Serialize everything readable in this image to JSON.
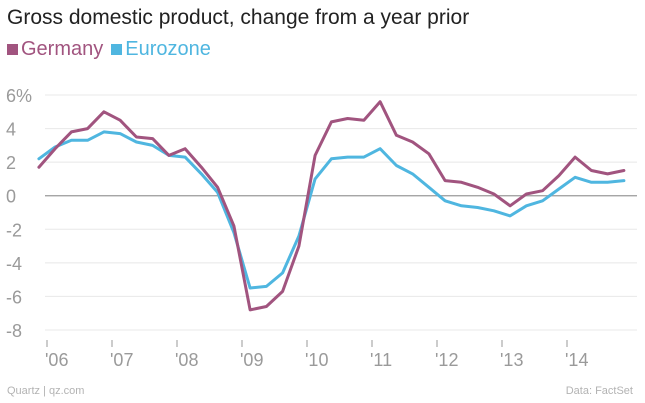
{
  "colors": {
    "germany": "#a1547f",
    "eurozone": "#4fb6e0",
    "grid": "#e8e8e8",
    "zero": "#9a9a9a",
    "tick_text": "#9a9a9a"
  },
  "footer": {
    "source_left": "Quartz | qz.com",
    "source_right": "Data: FactSet"
  },
  "chart_data": {
    "type": "line",
    "title": "Gross domestic product, change from a year prior",
    "xlabel": "",
    "ylabel": "",
    "ylim": [
      -8,
      6
    ],
    "y_ticks": [
      {
        "value": 6,
        "label": "6%"
      },
      {
        "value": 4,
        "label": "4"
      },
      {
        "value": 2,
        "label": "2"
      },
      {
        "value": 0,
        "label": "0"
      },
      {
        "value": -2,
        "label": "-2"
      },
      {
        "value": -4,
        "label": "-4"
      },
      {
        "value": -6,
        "label": "-6"
      },
      {
        "value": -8,
        "label": "-8"
      }
    ],
    "x_ticks": [
      {
        "value": 2006.0,
        "label": "'06"
      },
      {
        "value": 2007.0,
        "label": "'07"
      },
      {
        "value": 2008.0,
        "label": "'08"
      },
      {
        "value": 2009.0,
        "label": "'09"
      },
      {
        "value": 2010.0,
        "label": "'10"
      },
      {
        "value": 2011.0,
        "label": "'11"
      },
      {
        "value": 2012.0,
        "label": "'12"
      },
      {
        "value": 2013.0,
        "label": "'13"
      },
      {
        "value": 2014.0,
        "label": "'14"
      }
    ],
    "x": [
      2005.875,
      2006.125,
      2006.375,
      2006.625,
      2006.875,
      2007.125,
      2007.375,
      2007.625,
      2007.875,
      2008.125,
      2008.375,
      2008.625,
      2008.875,
      2009.125,
      2009.375,
      2009.625,
      2009.875,
      2010.125,
      2010.375,
      2010.625,
      2010.875,
      2011.125,
      2011.375,
      2011.625,
      2011.875,
      2012.125,
      2012.375,
      2012.625,
      2012.875,
      2013.125,
      2013.375,
      2013.625,
      2013.875,
      2014.125,
      2014.375,
      2014.625,
      2014.875
    ],
    "series": [
      {
        "name": "Germany",
        "values": [
          1.7,
          2.8,
          3.8,
          4.0,
          5.0,
          4.5,
          3.5,
          3.4,
          2.4,
          2.8,
          1.7,
          0.5,
          -1.8,
          -6.8,
          -6.6,
          -5.7,
          -3.0,
          2.4,
          4.4,
          4.6,
          4.5,
          5.6,
          3.6,
          3.2,
          2.5,
          0.9,
          0.8,
          0.5,
          0.1,
          -0.6,
          0.1,
          0.3,
          1.2,
          2.3,
          1.5,
          1.3,
          1.5
        ]
      },
      {
        "name": "Eurozone",
        "values": [
          2.2,
          2.9,
          3.3,
          3.3,
          3.8,
          3.7,
          3.2,
          3.0,
          2.4,
          2.3,
          1.3,
          0.2,
          -2.2,
          -5.5,
          -5.4,
          -4.6,
          -2.4,
          1.0,
          2.2,
          2.3,
          2.3,
          2.8,
          1.8,
          1.3,
          0.5,
          -0.3,
          -0.6,
          -0.7,
          -0.9,
          -1.2,
          -0.6,
          -0.3,
          0.4,
          1.1,
          0.8,
          0.8,
          0.9
        ]
      }
    ],
    "legend": "top-left"
  }
}
